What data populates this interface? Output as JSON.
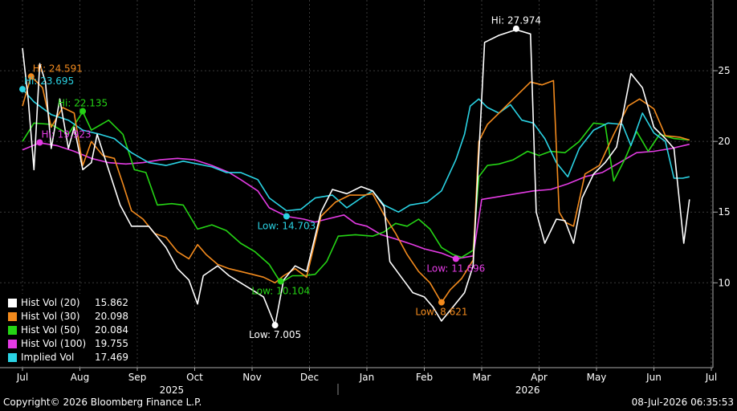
{
  "chart_data": {
    "type": "line",
    "x_axis": {
      "months": [
        "Jul",
        "Aug",
        "Sep",
        "Oct",
        "Nov",
        "Dec",
        "Jan",
        "Feb",
        "Mar",
        "Apr",
        "May",
        "Jun",
        "Jul"
      ],
      "years": [
        "2025",
        "2026"
      ]
    },
    "y_axis": {
      "side": "right",
      "ticks": [
        10,
        15,
        20,
        25
      ],
      "ylim": [
        4,
        30
      ]
    },
    "grid": true,
    "legend_position": "bottom-left",
    "series": [
      {
        "name": "Hist Vol (20)",
        "color": "#ffffff",
        "last": "15.862",
        "values": [
          [
            0,
            26.6
          ],
          [
            0.1,
            23
          ],
          [
            0.2,
            18
          ],
          [
            0.3,
            25.5
          ],
          [
            0.4,
            24.2
          ],
          [
            0.5,
            19.5
          ],
          [
            0.65,
            23
          ],
          [
            0.8,
            19.5
          ],
          [
            0.9,
            21
          ],
          [
            1.05,
            18
          ],
          [
            1.2,
            18.5
          ],
          [
            1.3,
            20.5
          ],
          [
            1.5,
            18
          ],
          [
            1.7,
            15.5
          ],
          [
            1.9,
            14
          ],
          [
            2.2,
            14
          ],
          [
            2.5,
            12.5
          ],
          [
            2.7,
            11
          ],
          [
            2.9,
            10.2
          ],
          [
            3.05,
            8.5
          ],
          [
            3.15,
            10.5
          ],
          [
            3.4,
            11.2
          ],
          [
            3.6,
            10.5
          ],
          [
            3.8,
            10
          ],
          [
            4.0,
            9.5
          ],
          [
            4.2,
            9.0
          ],
          [
            4.4,
            7.0
          ],
          [
            4.55,
            10.2
          ],
          [
            4.75,
            11.2
          ],
          [
            4.95,
            10.8
          ],
          [
            5.2,
            15
          ],
          [
            5.4,
            16.6
          ],
          [
            5.65,
            16.3
          ],
          [
            5.9,
            16.8
          ],
          [
            6.1,
            16.5
          ],
          [
            6.3,
            15.4
          ],
          [
            6.4,
            11.5
          ],
          [
            6.6,
            10.4
          ],
          [
            6.8,
            9.3
          ],
          [
            7.0,
            9.0
          ],
          [
            7.15,
            8.3
          ],
          [
            7.3,
            7.3
          ],
          [
            7.5,
            8.3
          ],
          [
            7.7,
            9.3
          ],
          [
            7.85,
            11.2
          ],
          [
            8.05,
            27.0
          ],
          [
            8.3,
            27.5
          ],
          [
            8.6,
            27.9
          ],
          [
            8.85,
            27.6
          ],
          [
            8.95,
            15
          ],
          [
            9.1,
            12.8
          ],
          [
            9.3,
            14.5
          ],
          [
            9.45,
            14.4
          ],
          [
            9.6,
            12.8
          ],
          [
            9.75,
            16
          ],
          [
            9.95,
            17.7
          ],
          [
            10.15,
            18.5
          ],
          [
            10.35,
            19.6
          ],
          [
            10.6,
            24.8
          ],
          [
            10.8,
            23.8
          ],
          [
            11.0,
            21
          ],
          [
            11.2,
            20.2
          ],
          [
            11.35,
            19.5
          ],
          [
            11.52,
            12.8
          ],
          [
            11.62,
            15.9
          ]
        ]
      },
      {
        "name": "Hist Vol (30)",
        "color": "#f28a1d",
        "last": "20.098",
        "values": [
          [
            0,
            22.5
          ],
          [
            0.15,
            24.6
          ],
          [
            0.35,
            23.8
          ],
          [
            0.5,
            21
          ],
          [
            0.7,
            22.4
          ],
          [
            0.9,
            22
          ],
          [
            1.05,
            18.3
          ],
          [
            1.2,
            20
          ],
          [
            1.4,
            19
          ],
          [
            1.6,
            18.8
          ],
          [
            1.75,
            17
          ],
          [
            1.9,
            15.1
          ],
          [
            2.1,
            14.5
          ],
          [
            2.3,
            13.5
          ],
          [
            2.5,
            13.2
          ],
          [
            2.7,
            12.2
          ],
          [
            2.9,
            11.7
          ],
          [
            3.05,
            12.7
          ],
          [
            3.2,
            12.0
          ],
          [
            3.4,
            11.3
          ],
          [
            3.6,
            11.0
          ],
          [
            3.8,
            10.8
          ],
          [
            4.0,
            10.6
          ],
          [
            4.2,
            10.4
          ],
          [
            4.4,
            10.0
          ],
          [
            4.55,
            10.5
          ],
          [
            4.75,
            11.0
          ],
          [
            4.95,
            10.4
          ],
          [
            5.2,
            14.7
          ],
          [
            5.45,
            15.7
          ],
          [
            5.7,
            16.2
          ],
          [
            5.95,
            16.2
          ],
          [
            6.1,
            16.3
          ],
          [
            6.3,
            14.8
          ],
          [
            6.5,
            13.5
          ],
          [
            6.7,
            12.0
          ],
          [
            6.9,
            10.8
          ],
          [
            7.1,
            10.0
          ],
          [
            7.3,
            8.6
          ],
          [
            7.45,
            9.5
          ],
          [
            7.65,
            10.3
          ],
          [
            7.85,
            11.6
          ],
          [
            7.95,
            20.0
          ],
          [
            8.1,
            21.2
          ],
          [
            8.3,
            22.0
          ],
          [
            8.6,
            23.2
          ],
          [
            8.85,
            24.2
          ],
          [
            9.05,
            24
          ],
          [
            9.25,
            24.3
          ],
          [
            9.35,
            15.0
          ],
          [
            9.45,
            14.3
          ],
          [
            9.6,
            14.0
          ],
          [
            9.8,
            17.7
          ],
          [
            10.05,
            18.3
          ],
          [
            10.3,
            20.5
          ],
          [
            10.55,
            22.5
          ],
          [
            10.75,
            23.0
          ],
          [
            11.0,
            22.3
          ],
          [
            11.2,
            20.4
          ],
          [
            11.45,
            20.3
          ],
          [
            11.62,
            20.1
          ]
        ]
      },
      {
        "name": "Hist Vol (50)",
        "color": "#25d415",
        "last": "20.084",
        "values": [
          [
            0,
            20
          ],
          [
            0.2,
            21.3
          ],
          [
            0.5,
            21.2
          ],
          [
            0.8,
            20.5
          ],
          [
            1.05,
            22.1
          ],
          [
            1.2,
            20.8
          ],
          [
            1.5,
            21.5
          ],
          [
            1.75,
            20.5
          ],
          [
            1.95,
            18
          ],
          [
            2.15,
            17.8
          ],
          [
            2.35,
            15.5
          ],
          [
            2.6,
            15.6
          ],
          [
            2.8,
            15.5
          ],
          [
            3.05,
            13.8
          ],
          [
            3.3,
            14.1
          ],
          [
            3.55,
            13.7
          ],
          [
            3.8,
            12.8
          ],
          [
            4.05,
            12.2
          ],
          [
            4.3,
            11.3
          ],
          [
            4.5,
            10.0
          ],
          [
            4.7,
            10.5
          ],
          [
            4.9,
            10.5
          ],
          [
            5.1,
            10.6
          ],
          [
            5.3,
            11.5
          ],
          [
            5.5,
            13.3
          ],
          [
            5.8,
            13.4
          ],
          [
            6.1,
            13.3
          ],
          [
            6.3,
            13.6
          ],
          [
            6.5,
            14.2
          ],
          [
            6.7,
            14.0
          ],
          [
            6.9,
            14.5
          ],
          [
            7.1,
            13.8
          ],
          [
            7.3,
            12.5
          ],
          [
            7.5,
            12.0
          ],
          [
            7.65,
            11.8
          ],
          [
            7.85,
            12.3
          ],
          [
            7.95,
            17.5
          ],
          [
            8.1,
            18.3
          ],
          [
            8.3,
            18.4
          ],
          [
            8.55,
            18.7
          ],
          [
            8.8,
            19.3
          ],
          [
            9.0,
            19.0
          ],
          [
            9.2,
            19.3
          ],
          [
            9.45,
            19.2
          ],
          [
            9.7,
            20.0
          ],
          [
            9.95,
            21.3
          ],
          [
            10.15,
            21.2
          ],
          [
            10.3,
            17.2
          ],
          [
            10.5,
            18.8
          ],
          [
            10.7,
            20.7
          ],
          [
            10.9,
            19.3
          ],
          [
            11.1,
            20.5
          ],
          [
            11.35,
            20.2
          ],
          [
            11.62,
            20.1
          ]
        ]
      },
      {
        "name": "Hist Vol (100)",
        "color": "#e43be4",
        "last": "19.755",
        "values": [
          [
            0,
            19.4
          ],
          [
            0.3,
            19.9
          ],
          [
            0.6,
            19.7
          ],
          [
            0.9,
            19.3
          ],
          [
            1.2,
            18.8
          ],
          [
            1.5,
            18.5
          ],
          [
            1.8,
            18.4
          ],
          [
            2.1,
            18.5
          ],
          [
            2.4,
            18.7
          ],
          [
            2.7,
            18.8
          ],
          [
            3.0,
            18.7
          ],
          [
            3.3,
            18.3
          ],
          [
            3.6,
            17.8
          ],
          [
            3.8,
            17.3
          ],
          [
            4.1,
            16.5
          ],
          [
            4.3,
            15.3
          ],
          [
            4.6,
            14.7
          ],
          [
            4.9,
            14.5
          ],
          [
            5.1,
            14.3
          ],
          [
            5.3,
            14.5
          ],
          [
            5.6,
            14.8
          ],
          [
            5.8,
            14.2
          ],
          [
            6.0,
            14.0
          ],
          [
            6.25,
            13.4
          ],
          [
            6.5,
            13.1
          ],
          [
            6.8,
            12.7
          ],
          [
            7.0,
            12.4
          ],
          [
            7.3,
            12.1
          ],
          [
            7.55,
            11.7
          ],
          [
            7.85,
            11.9
          ],
          [
            8.0,
            15.9
          ],
          [
            8.3,
            16.1
          ],
          [
            8.6,
            16.3
          ],
          [
            8.9,
            16.5
          ],
          [
            9.2,
            16.6
          ],
          [
            9.5,
            17.0
          ],
          [
            9.8,
            17.5
          ],
          [
            10.1,
            17.8
          ],
          [
            10.4,
            18.5
          ],
          [
            10.7,
            19.2
          ],
          [
            11.0,
            19.3
          ],
          [
            11.3,
            19.5
          ],
          [
            11.62,
            19.8
          ]
        ]
      },
      {
        "name": "Implied Vol",
        "color": "#2ad3e4",
        "last": "17.469",
        "values": [
          [
            0,
            23.7
          ],
          [
            0.2,
            22.8
          ],
          [
            0.5,
            21.9
          ],
          [
            0.8,
            21.5
          ],
          [
            1.05,
            20.8
          ],
          [
            1.35,
            20.5
          ],
          [
            1.6,
            20.2
          ],
          [
            1.9,
            19.2
          ],
          [
            2.2,
            18.5
          ],
          [
            2.5,
            18.3
          ],
          [
            2.8,
            18.6
          ],
          [
            3.05,
            18.4
          ],
          [
            3.3,
            18.2
          ],
          [
            3.55,
            17.8
          ],
          [
            3.8,
            17.8
          ],
          [
            4.1,
            17.3
          ],
          [
            4.3,
            16.0
          ],
          [
            4.6,
            15.1
          ],
          [
            4.85,
            15.2
          ],
          [
            5.1,
            16.0
          ],
          [
            5.4,
            16.2
          ],
          [
            5.65,
            15.3
          ],
          [
            5.9,
            16.0
          ],
          [
            6.1,
            16.5
          ],
          [
            6.3,
            15.5
          ],
          [
            6.55,
            15.0
          ],
          [
            6.75,
            15.5
          ],
          [
            7.05,
            15.7
          ],
          [
            7.3,
            16.5
          ],
          [
            7.55,
            18.7
          ],
          [
            7.7,
            20.5
          ],
          [
            7.8,
            22.5
          ],
          [
            7.95,
            23.0
          ],
          [
            8.1,
            22.4
          ],
          [
            8.3,
            22.0
          ],
          [
            8.5,
            22.6
          ],
          [
            8.7,
            21.5
          ],
          [
            8.9,
            21.3
          ],
          [
            9.1,
            20.2
          ],
          [
            9.3,
            18.5
          ],
          [
            9.5,
            17.5
          ],
          [
            9.7,
            19.5
          ],
          [
            9.95,
            20.8
          ],
          [
            10.2,
            21.3
          ],
          [
            10.45,
            21.2
          ],
          [
            10.6,
            19.7
          ],
          [
            10.8,
            22.0
          ],
          [
            11.0,
            20.6
          ],
          [
            11.2,
            20.0
          ],
          [
            11.35,
            17.4
          ],
          [
            11.5,
            17.4
          ],
          [
            11.62,
            17.5
          ]
        ]
      }
    ],
    "annotations": [
      {
        "text": "Hi: 27.974",
        "series": 0,
        "x": 8.6,
        "y": 27.974
      },
      {
        "text": "Low: 7.005",
        "series": 0,
        "x": 4.4,
        "y": 7.005
      },
      {
        "text": "Hi: 24.591",
        "series": 1,
        "x": 0.15,
        "y": 24.591
      },
      {
        "text": "Low: 8.621",
        "series": 1,
        "x": 7.3,
        "y": 8.621
      },
      {
        "text": "Hi: 22.135",
        "series": 2,
        "x": 1.05,
        "y": 22.135
      },
      {
        "text": "Low: 10.104",
        "series": 2,
        "x": 4.5,
        "y": 10.104
      },
      {
        "text": "Hi: 19.923",
        "series": 3,
        "x": 0.3,
        "y": 19.923
      },
      {
        "text": "Low: 11.696",
        "series": 3,
        "x": 7.55,
        "y": 11.696
      },
      {
        "text": "Hi: 23.695",
        "series": 4,
        "x": 0,
        "y": 23.695
      },
      {
        "text": "Low: 14.703",
        "series": 4,
        "x": 4.6,
        "y": 14.703
      }
    ]
  },
  "footer": {
    "copyright": "Copyright© 2026 Bloomberg Finance L.P.",
    "timestamp": "08-Jul-2026 06:35:53"
  }
}
